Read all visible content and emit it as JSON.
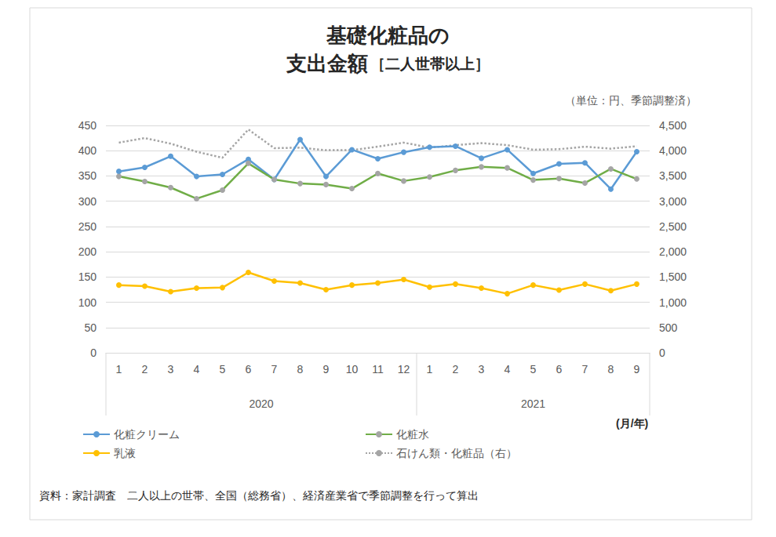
{
  "chart_data": {
    "type": "line",
    "title": "基礎化粧品の\n支出金額",
    "subtitle": "［二人世帯以上］",
    "unit_note": "（単位：円、季節調整済）",
    "x_label": "(月/年)",
    "source": "資料：家計調査　二人以上の世帯、全国（総務省）、経済産業省で季節調整を行って算出",
    "categories": [
      "1",
      "2",
      "3",
      "4",
      "5",
      "6",
      "7",
      "8",
      "9",
      "10",
      "11",
      "12",
      "1",
      "2",
      "3",
      "4",
      "5",
      "6",
      "7",
      "8",
      "9"
    ],
    "category_groups": [
      {
        "label": "2020",
        "size": 12
      },
      {
        "label": "2021",
        "size": 9
      }
    ],
    "series": [
      {
        "name": "化粧クリーム",
        "color": "#5B9BD5",
        "marker": "circle",
        "values": [
          359,
          367,
          389,
          349,
          353,
          383,
          343,
          422,
          349,
          402,
          384,
          397,
          407,
          409,
          385,
          402,
          355,
          374,
          376,
          324,
          398
        ]
      },
      {
        "name": "化粧水",
        "color": "#70AD47",
        "marker": "circle",
        "values": [
          349,
          339,
          327,
          305,
          322,
          375,
          343,
          335,
          333,
          325,
          355,
          340,
          348,
          361,
          368,
          366,
          342,
          345,
          336,
          364,
          344
        ]
      },
      {
        "name": "乳液",
        "color": "#FFC000",
        "marker": "circle",
        "values": [
          134,
          132,
          121,
          128,
          129,
          159,
          142,
          138,
          125,
          134,
          138,
          145,
          130,
          136,
          128,
          117,
          134,
          124,
          136,
          123,
          136
        ]
      },
      {
        "name": "石けん類・化粧品（右）",
        "color": "#A5A5A5",
        "marker": "none",
        "line_style": "dotted",
        "axis": "y2",
        "values": [
          4160,
          4250,
          4140,
          3980,
          3860,
          4420,
          4050,
          4060,
          4010,
          4010,
          4080,
          4160,
          4060,
          4110,
          4150,
          4110,
          4020,
          4030,
          4080,
          4040,
          4090
        ]
      }
    ],
    "ylim": [
      0,
      450
    ],
    "yticks": [
      0,
      50,
      100,
      150,
      200,
      250,
      300,
      350,
      400,
      450
    ],
    "y2lim": [
      0,
      4500
    ],
    "y2ticks": [
      0,
      500,
      {
        "value": 1000,
        "label": "1,000"
      },
      {
        "value": 1500,
        "label": "1,500"
      },
      {
        "value": 2000,
        "label": "2,000"
      },
      {
        "value": 2500,
        "label": "2,500"
      },
      {
        "value": 3000,
        "label": "3,000"
      },
      {
        "value": 3500,
        "label": "3,500"
      },
      {
        "value": 4000,
        "label": "4,000"
      },
      {
        "value": 4500,
        "label": "4,500"
      }
    ],
    "grid": true,
    "legend": "bottom"
  }
}
